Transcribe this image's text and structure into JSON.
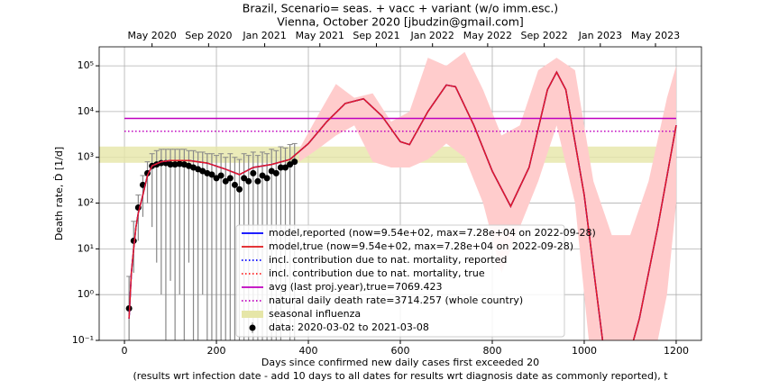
{
  "chart_data": {
    "type": "line",
    "title": "Brazil, Scenario= seas. + vacc + variant (w/o imm.esc.)",
    "subtitle": "Vienna, October 2020 [jbudzin@gmail.com]",
    "x_label": "Days since confirmed new daily cases first exceeded 20",
    "x_note": "(results wrt infection date - add 10 days to all dates for results wrt diagnosis date as commonly reported), t",
    "y_label": "Death rate, Ḋ [1/d]",
    "log_y": true,
    "grid": true,
    "legend": "lower center",
    "xlim": [
      -55,
      1255
    ],
    "ylim": [
      0.1,
      260000
    ],
    "xticks": [
      0,
      200,
      400,
      600,
      800,
      1000,
      1200
    ],
    "yticks": [
      {
        "value": 0.1,
        "label": "10⁻¹"
      },
      {
        "value": 1,
        "label": "10⁰"
      },
      {
        "value": 10,
        "label": "10¹"
      },
      {
        "value": 100,
        "label": "10²"
      },
      {
        "value": 1000,
        "label": "10³"
      },
      {
        "value": 10000,
        "label": "10⁴"
      },
      {
        "value": 100000,
        "label": "10⁵"
      }
    ],
    "top_xticks": [
      {
        "value": 60,
        "label": "May 2020"
      },
      {
        "value": 183,
        "label": "Sep 2020"
      },
      {
        "value": 305,
        "label": "Jan 2021"
      },
      {
        "value": 425,
        "label": "May 2021"
      },
      {
        "value": 548,
        "label": "Sep 2021"
      },
      {
        "value": 670,
        "label": "Jan 2022"
      },
      {
        "value": 790,
        "label": "May 2022"
      },
      {
        "value": 913,
        "label": "Sep 2022"
      },
      {
        "value": 1035,
        "label": "Jan 2023"
      },
      {
        "value": 1155,
        "label": "May 2023"
      }
    ],
    "band": {
      "color": "#ffcccc",
      "x": [
        380,
        420,
        460,
        500,
        540,
        580,
        620,
        660,
        700,
        740,
        780,
        820,
        860,
        900,
        940,
        980,
        1020,
        1060,
        1100,
        1140,
        1180,
        1200
      ],
      "lower": [
        800,
        1500,
        3000,
        5000,
        800,
        600,
        600,
        900,
        2000,
        1000,
        100,
        3,
        30,
        300,
        5000,
        100,
        0.01,
        0.01,
        0.01,
        0.01,
        1,
        100
      ],
      "upper": [
        1500,
        8000,
        40000,
        20000,
        25000,
        6000,
        10000,
        150000,
        100000,
        200000,
        30000,
        3000,
        5000,
        80000,
        150000,
        80000,
        300,
        20,
        20,
        300,
        20000,
        100000
      ]
    },
    "influenza": {
      "name": "seasonal influenza",
      "color": "#e6e6a8",
      "range": [
        760,
        1720
      ]
    },
    "x": [
      10,
      15,
      20,
      25,
      30,
      40,
      50,
      60,
      80,
      100,
      140,
      180,
      220,
      250,
      280,
      320,
      360,
      400,
      440,
      480,
      520,
      560,
      600,
      620,
      660,
      700,
      720,
      760,
      800,
      840,
      880,
      920,
      940,
      960,
      1000,
      1040,
      1080,
      1120,
      1160,
      1200
    ],
    "series": [
      {
        "name": "model,reported (now=9.54e+02, max=7.28e+04 on 2022-09-28)",
        "color": "#0000ff",
        "style": "solid",
        "values": [
          0.3,
          3,
          10,
          30,
          60,
          150,
          400,
          650,
          800,
          850,
          850,
          750,
          550,
          420,
          600,
          700,
          900,
          2000,
          6000,
          15000,
          19000,
          8000,
          2200,
          1900,
          10000,
          38000,
          35000,
          5000,
          500,
          85,
          600,
          30000,
          72800,
          30000,
          150,
          0.1,
          0.01,
          0.3,
          30,
          5000
        ]
      },
      {
        "name": "model,true (now=9.54e+02, max=7.28e+04 on 2022-09-28)",
        "color": "#e0181c",
        "style": "solid",
        "values": [
          0.3,
          3,
          10,
          30,
          60,
          150,
          400,
          650,
          800,
          850,
          850,
          750,
          550,
          420,
          600,
          700,
          900,
          2000,
          6000,
          15000,
          19000,
          8000,
          2200,
          1900,
          10000,
          38000,
          35000,
          5000,
          500,
          85,
          600,
          30000,
          72800,
          30000,
          150,
          0.1,
          0.01,
          0.3,
          30,
          5000
        ]
      },
      {
        "name": "incl. contribution due to nat. mortality, reported",
        "color": "#0000ff",
        "style": "dotted",
        "values": [
          0.3,
          3,
          10,
          30,
          60,
          150,
          400,
          650,
          800,
          850,
          850,
          750,
          550,
          420,
          600,
          700,
          900,
          2000,
          6000,
          15000,
          19000,
          8000,
          2200,
          1900,
          10000,
          38000,
          35000,
          5000,
          500,
          85,
          600,
          30000,
          72800,
          30000,
          150,
          0.1,
          0.01,
          0.3,
          30,
          5000
        ]
      },
      {
        "name": "incl. contribution due to nat. mortality, true",
        "color": "#ff2020",
        "style": "dotted",
        "values": [
          0.3,
          3,
          10,
          30,
          60,
          150,
          400,
          650,
          800,
          850,
          850,
          750,
          550,
          420,
          600,
          700,
          900,
          2000,
          6000,
          15000,
          19000,
          8000,
          2200,
          1900,
          10000,
          38000,
          35000,
          5000,
          500,
          85,
          600,
          30000,
          72800,
          30000,
          150,
          0.1,
          0.01,
          0.3,
          30,
          5000
        ]
      }
    ],
    "hlines": [
      {
        "name": "avg (last proj.year),true=7069.423",
        "color": "#bf00bf",
        "style": "solid",
        "value": 7069.423
      },
      {
        "name": "natural daily death rate=3714.257 (whole country)",
        "color": "#bf00bf",
        "style": "dotted",
        "value": 3714.257
      }
    ],
    "data": {
      "name": "data: 2020-03-02 to 2021-03-08",
      "color": "#000000",
      "x": [
        10,
        20,
        30,
        40,
        50,
        60,
        70,
        80,
        90,
        100,
        110,
        120,
        130,
        140,
        150,
        160,
        170,
        180,
        190,
        200,
        210,
        220,
        230,
        240,
        250,
        260,
        270,
        280,
        290,
        300,
        310,
        320,
        330,
        340,
        350,
        360,
        370
      ],
      "values": [
        0.5,
        15,
        80,
        250,
        450,
        650,
        700,
        750,
        750,
        700,
        700,
        720,
        700,
        650,
        600,
        550,
        500,
        450,
        420,
        350,
        400,
        300,
        350,
        250,
        200,
        350,
        300,
        450,
        300,
        400,
        350,
        500,
        450,
        600,
        600,
        700,
        800
      ],
      "error_low": [
        0.1,
        3,
        15,
        50,
        100,
        30,
        5,
        1,
        0.1,
        2,
        0.1,
        1,
        0.1,
        5,
        0.1,
        0.1,
        1,
        0.1,
        0.1,
        0.1,
        0.1,
        0.1,
        0.1,
        0.1,
        0.1,
        0.1,
        0.1,
        0.1,
        0.1,
        0.1,
        0.1,
        0.1,
        0.1,
        0.1,
        1,
        0.1,
        0.1
      ],
      "error_high": [
        2.5,
        40,
        150,
        400,
        800,
        1200,
        1400,
        1500,
        1500,
        1500,
        1500,
        1500,
        1500,
        1400,
        1400,
        1300,
        1300,
        1200,
        1200,
        1100,
        1200,
        1000,
        1200,
        1000,
        900,
        1200,
        1100,
        1300,
        1100,
        1300,
        1200,
        1500,
        1400,
        1700,
        1600,
        1900,
        2000
      ]
    }
  }
}
